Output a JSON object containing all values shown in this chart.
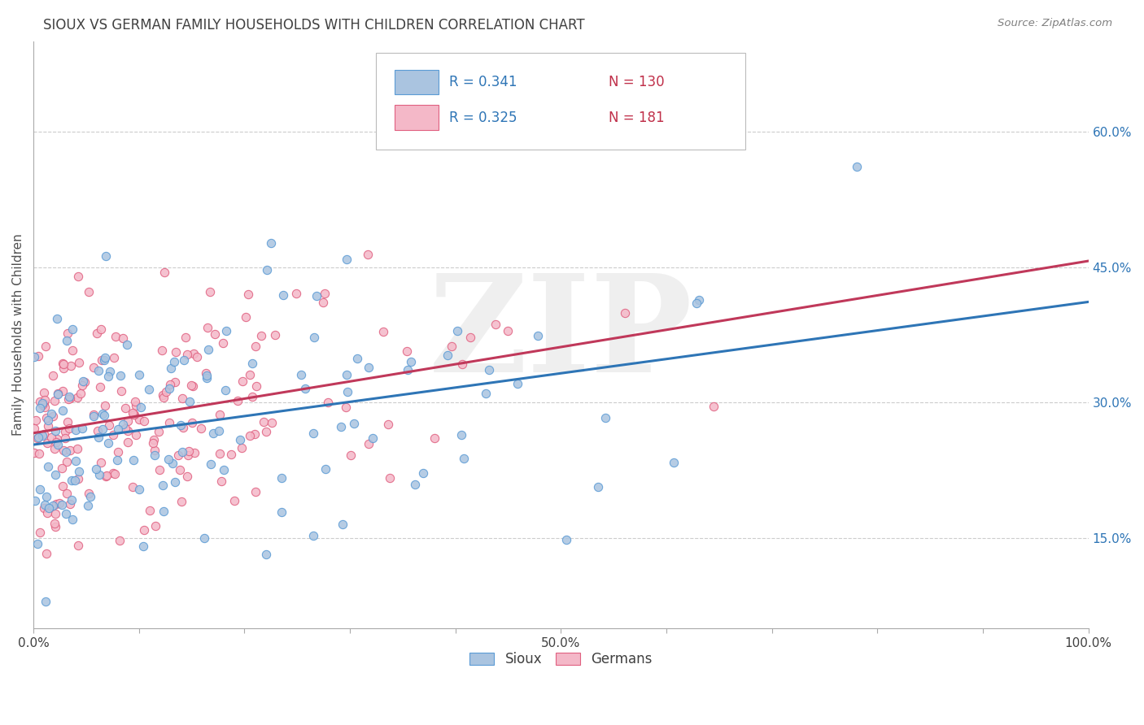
{
  "title": "SIOUX VS GERMAN FAMILY HOUSEHOLDS WITH CHILDREN CORRELATION CHART",
  "source_text": "Source: ZipAtlas.com",
  "ylabel": "Family Households with Children",
  "xlim": [
    0.0,
    1.0
  ],
  "ylim": [
    0.05,
    0.7
  ],
  "xtick_positions": [
    0.0,
    0.1,
    0.2,
    0.3,
    0.4,
    0.5,
    0.6,
    0.7,
    0.8,
    0.9,
    1.0
  ],
  "xtick_labels": [
    "0.0%",
    "",
    "",
    "",
    "",
    "50.0%",
    "",
    "",
    "",
    "",
    "100.0%"
  ],
  "ytick_positions": [
    0.15,
    0.3,
    0.45,
    0.6
  ],
  "ytick_labels": [
    "15.0%",
    "30.0%",
    "45.0%",
    "60.0%"
  ],
  "sioux_color": "#aac4e0",
  "sioux_edge_color": "#5b9bd5",
  "german_color": "#f4b8c8",
  "german_edge_color": "#e06080",
  "sioux_line_color": "#2e75b6",
  "german_line_color": "#c0385a",
  "sioux_R": 0.341,
  "sioux_N": 130,
  "german_R": 0.325,
  "german_N": 181,
  "legend_R_color": "#2e75b6",
  "legend_N_color": "#c0304a",
  "watermark": "ZIP",
  "marker_size": 55,
  "background_color": "#ffffff",
  "grid_color": "#cccccc",
  "title_color": "#404040",
  "sioux_seed": 42,
  "german_seed": 99
}
